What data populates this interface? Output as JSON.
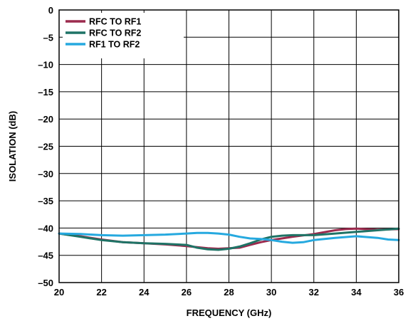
{
  "chart_data": {
    "type": "line",
    "xlabel": "FREQUENCY (GHz)",
    "ylabel": "ISOLATION (dB)",
    "xlim": [
      20,
      36
    ],
    "ylim": [
      -50,
      0
    ],
    "x_ticks": [
      "20",
      "22",
      "24",
      "26",
      "28",
      "30",
      "32",
      "34",
      "36"
    ],
    "y_ticks": [
      "0",
      "–5",
      "–10",
      "–15",
      "–20",
      "–25",
      "–30",
      "–35",
      "–40",
      "–45",
      "–50"
    ],
    "grid": true,
    "legend_position": "top-left",
    "series": [
      {
        "name": "RFC TO RF1",
        "color": "#9b2a4d",
        "x": [
          20,
          21,
          22,
          23,
          24,
          25,
          26,
          26.5,
          27,
          27.5,
          28,
          28.5,
          29,
          29.5,
          30,
          30.5,
          31,
          32,
          33,
          33.5,
          34,
          35,
          36
        ],
        "y": [
          -41.0,
          -41.5,
          -42.1,
          -42.6,
          -42.8,
          -43.0,
          -43.3,
          -43.5,
          -43.7,
          -43.8,
          -43.7,
          -43.6,
          -43.1,
          -42.6,
          -42.2,
          -41.9,
          -41.6,
          -41.1,
          -40.4,
          -40.2,
          -40.1,
          -40.3,
          -40.2
        ]
      },
      {
        "name": "RFC TO RF2",
        "color": "#1f7366",
        "x": [
          20,
          21,
          22,
          23,
          24,
          25,
          26,
          26.5,
          27,
          27.5,
          28,
          28.5,
          29,
          29.5,
          30,
          30.5,
          31,
          32,
          33,
          34,
          35,
          36
        ],
        "y": [
          -41.0,
          -41.6,
          -42.2,
          -42.6,
          -42.8,
          -42.9,
          -43.1,
          -43.6,
          -43.9,
          -44.0,
          -43.8,
          -43.4,
          -42.8,
          -42.1,
          -41.6,
          -41.4,
          -41.3,
          -41.3,
          -41.0,
          -40.7,
          -40.4,
          -40.1
        ]
      },
      {
        "name": "RF1 TO RF2",
        "color": "#26a9df",
        "x": [
          20,
          21,
          22,
          23,
          24,
          25,
          26,
          26.5,
          27,
          27.5,
          28,
          28.5,
          29,
          29.5,
          30,
          30.5,
          31,
          31.5,
          32,
          33,
          34,
          35,
          35.5,
          36
        ],
        "y": [
          -41.0,
          -41.1,
          -41.3,
          -41.4,
          -41.3,
          -41.2,
          -41.0,
          -40.9,
          -40.9,
          -41.0,
          -41.2,
          -41.6,
          -41.9,
          -42.0,
          -42.2,
          -42.5,
          -42.7,
          -42.6,
          -42.2,
          -41.8,
          -41.5,
          -41.8,
          -42.1,
          -42.2
        ]
      }
    ]
  }
}
